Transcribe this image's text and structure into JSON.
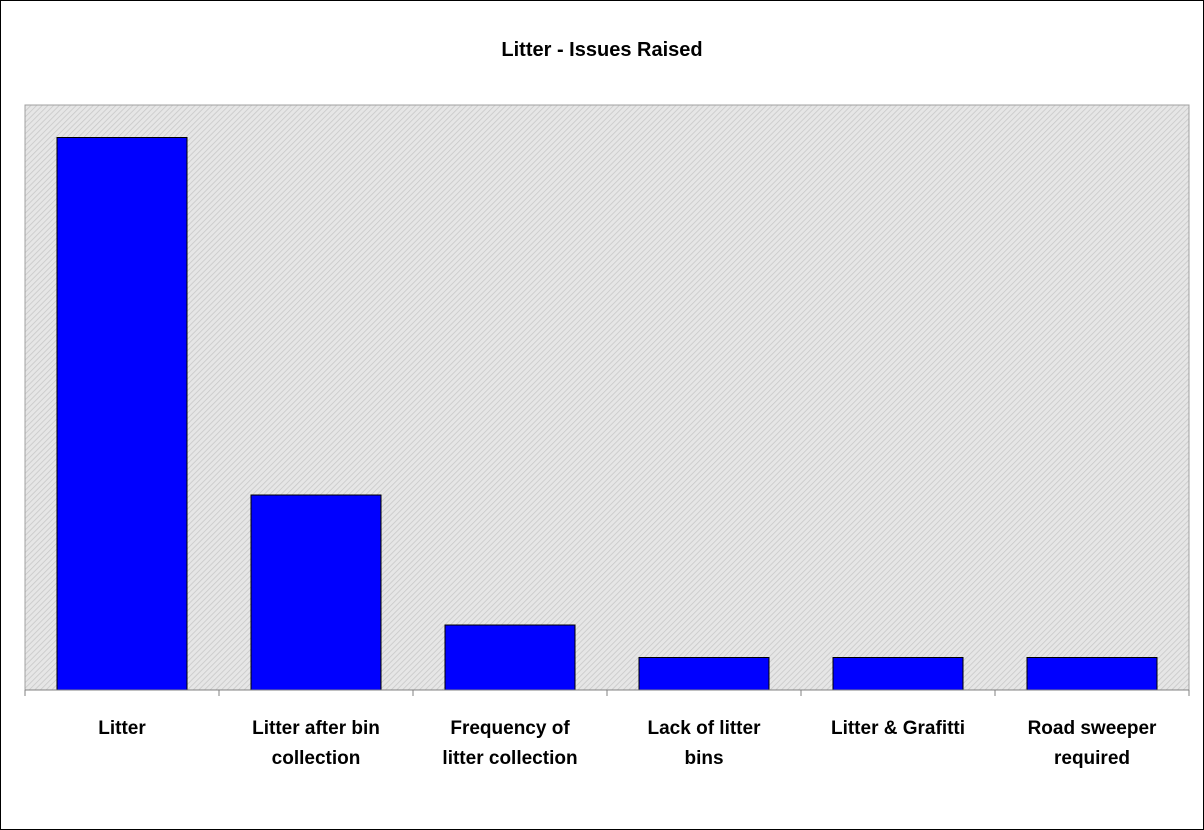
{
  "chart_data": {
    "type": "bar",
    "title": "Litter - Issues Raised",
    "xlabel": "",
    "ylabel": "",
    "categories": [
      [
        "Litter"
      ],
      [
        "Litter after bin",
        "collection"
      ],
      [
        "Frequency of",
        "litter collection"
      ],
      [
        "Lack of litter",
        "bins"
      ],
      [
        "Litter & Grafitti"
      ],
      [
        "Road sweeper",
        "required"
      ]
    ],
    "values": [
      17,
      6,
      2,
      1,
      1,
      1
    ],
    "ylim": [
      0,
      18
    ],
    "grid": false,
    "legend": "none",
    "colors": {
      "bar": "#0000FF",
      "plot_background": "#DCDCDC",
      "axis": "#808080"
    }
  }
}
